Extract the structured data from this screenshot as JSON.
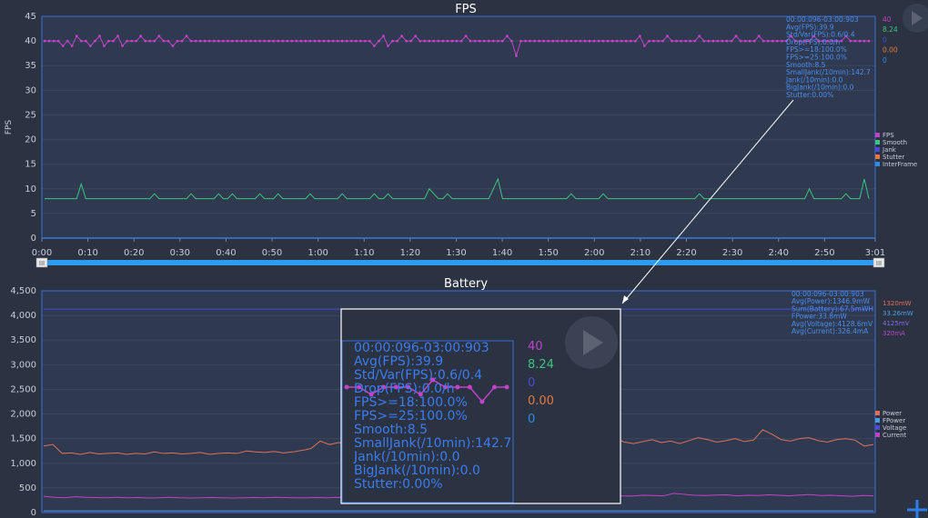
{
  "fps_chart": {
    "title": "FPS",
    "ylabel": "FPS",
    "chart_data": {
      "type": "line",
      "title": "FPS",
      "ylabel": "FPS",
      "ylim": [
        0,
        45
      ],
      "y_ticks": [
        "0",
        "5",
        "10",
        "15",
        "20",
        "25",
        "30",
        "35",
        "40",
        "45"
      ],
      "x_ticks": [
        "0:00",
        "0:10",
        "0:20",
        "0:30",
        "0:40",
        "0:50",
        "1:00",
        "1:10",
        "1:20",
        "1:30",
        "1:40",
        "1:50",
        "2:00",
        "2:10",
        "2:20",
        "2:30",
        "2:40",
        "2:50",
        "3:01"
      ],
      "xlim_seconds": [
        0,
        181
      ],
      "legend_position": "right",
      "series": [
        {
          "name": "FPS",
          "color": "#c242c8",
          "values": [
            40,
            40,
            40,
            40,
            39,
            40,
            39,
            41,
            40,
            40,
            39,
            40,
            41,
            39,
            40,
            40,
            41,
            39,
            40,
            40,
            40,
            41,
            40,
            40,
            40,
            41,
            40,
            40,
            39,
            40,
            40,
            41,
            40,
            40,
            40,
            40,
            40,
            40,
            40,
            40,
            40,
            40,
            40,
            40,
            40,
            40,
            40,
            40,
            40,
            40,
            40,
            40,
            40,
            40,
            40,
            40,
            40,
            40,
            40,
            40,
            40,
            40,
            40,
            40,
            40,
            40,
            40,
            40,
            40,
            40,
            40,
            40,
            39,
            40,
            41,
            39,
            40,
            40,
            41,
            40,
            40,
            41,
            40,
            40,
            40,
            40,
            40,
            40,
            40,
            40,
            40,
            40,
            41,
            40,
            40,
            40,
            40,
            40,
            40,
            40,
            40,
            41,
            40,
            37,
            40,
            40,
            40,
            40,
            40,
            40,
            40,
            40,
            40,
            40,
            40,
            40,
            40,
            40,
            40,
            40,
            40,
            40,
            40,
            40,
            40,
            40,
            40,
            40,
            40,
            40,
            41,
            39,
            40,
            40,
            40,
            40,
            41,
            40,
            40,
            40,
            40,
            40,
            40,
            41,
            40,
            40,
            40,
            40,
            40,
            40,
            40,
            41,
            40,
            40,
            40,
            40,
            41,
            40,
            40,
            40,
            40,
            40,
            40,
            41,
            40,
            40,
            40,
            40,
            41,
            40,
            40,
            40,
            40,
            40,
            40,
            41,
            40,
            40,
            40,
            40,
            40
          ]
        },
        {
          "name": "Smooth",
          "color": "#3dc47e",
          "values": [
            8,
            8,
            8,
            8,
            8,
            8,
            8,
            8,
            11,
            8,
            8,
            8,
            8,
            8,
            8,
            8,
            8,
            8,
            8,
            8,
            8,
            8,
            8,
            8,
            9,
            8,
            8,
            8,
            8,
            8,
            8,
            8,
            9,
            8,
            8,
            8,
            8,
            8,
            9,
            8,
            8,
            9,
            8,
            8,
            8,
            8,
            8,
            9,
            8,
            8,
            8,
            9,
            8,
            8,
            8,
            8,
            8,
            8,
            9,
            8,
            8,
            8,
            8,
            8,
            8,
            9,
            8,
            8,
            8,
            8,
            8,
            8,
            9,
            8,
            8,
            9,
            8,
            8,
            8,
            8,
            8,
            8,
            8,
            8,
            10,
            9,
            8,
            8,
            9,
            8,
            8,
            8,
            8,
            8,
            8,
            8,
            8,
            8,
            10,
            12,
            8,
            8,
            8,
            8,
            8,
            8,
            8,
            8,
            8,
            8,
            8,
            8,
            8,
            8,
            8,
            9,
            8,
            8,
            8,
            8,
            8,
            8,
            9,
            8,
            8,
            8,
            8,
            8,
            8,
            8,
            8,
            8,
            8,
            8,
            8,
            8,
            8,
            8,
            8,
            8,
            8,
            8,
            8,
            9,
            8,
            8,
            8,
            8,
            8,
            8,
            8,
            8,
            8,
            8,
            8,
            8,
            8,
            8,
            8,
            8,
            8,
            8,
            8,
            8,
            8,
            8,
            8,
            10,
            8,
            8,
            8,
            8,
            8,
            8,
            8,
            9,
            8,
            8,
            8,
            12,
            8
          ]
        },
        {
          "name": "Jank",
          "color": "#4040d0",
          "values": [
            0,
            0
          ]
        },
        {
          "name": "Stutter",
          "color": "#e8783a",
          "values": [
            0,
            0
          ]
        },
        {
          "name": "InterFrame",
          "color": "#2e8de8",
          "values": [
            0,
            0
          ]
        }
      ]
    },
    "legend_items": [
      {
        "name": "FPS",
        "color": "#c242c8"
      },
      {
        "name": "Smooth",
        "color": "#3dc47e"
      },
      {
        "name": "Jank",
        "color": "#4a4ad8"
      },
      {
        "name": "Stutter",
        "color": "#e8783a"
      },
      {
        "name": "InterFrame",
        "color": "#2e8de8"
      }
    ],
    "stats": [
      "00:00:096-03:00:903",
      "Avg(FPS):39.9",
      "Std/Var(FPS):0.6/0.4",
      "Drop(FPS):0.0/h",
      "FPS>=18:100.0%",
      "FPS>=25:100.0%",
      "Smooth:8.5",
      "SmallJank(/10min):142.7",
      "Jank(/10min):0.0",
      "BigJank(/10min):0.0",
      "Stutter:0.00%"
    ],
    "side_values": [
      {
        "text": "40",
        "color": "#c242c8"
      },
      {
        "text": "8.24",
        "color": "#3dc47e"
      },
      {
        "text": "0",
        "color": "#4a4ad8"
      },
      {
        "text": "0.00",
        "color": "#e8783a"
      },
      {
        "text": "0",
        "color": "#2e8de8"
      }
    ]
  },
  "battery_chart": {
    "title": "Battery",
    "chart_data": {
      "type": "line",
      "title": "Battery",
      "ylim": [
        0,
        4500
      ],
      "y_ticks": [
        "0",
        "500",
        "1,000",
        "1,500",
        "2,000",
        "2,500",
        "3,000",
        "3,500",
        "4,000",
        "4,500"
      ],
      "legend_position": "right",
      "series": [
        {
          "name": "Power",
          "color": "#e0705a",
          "values": [
            1350,
            1380,
            1200,
            1210,
            1180,
            1220,
            1190,
            1200,
            1210,
            1180,
            1200,
            1190,
            1230,
            1200,
            1210,
            1190,
            1200,
            1220,
            1180,
            1200,
            1210,
            1200,
            1250,
            1230,
            1220,
            1240,
            1210,
            1230,
            1260,
            1300,
            1450,
            1380,
            1420,
            1400,
            1350,
            1480,
            1420,
            1380,
            1400,
            1450,
            1420,
            1460,
            1380,
            1400,
            1470,
            1430,
            1390,
            1410,
            1450,
            1420,
            1400,
            1460,
            1380,
            1420,
            1440,
            1400,
            1430,
            1470,
            1410,
            1390,
            1420,
            1460,
            1500,
            1430,
            1400,
            1440,
            1480,
            1420,
            1450,
            1400,
            1460,
            1520,
            1480,
            1430,
            1460,
            1500,
            1440,
            1470,
            1680,
            1590,
            1480,
            1450,
            1500,
            1520,
            1460,
            1430,
            1480,
            1500,
            1470,
            1350,
            1380
          ]
        },
        {
          "name": "FPower",
          "color": "#4a9ee8",
          "values": [
            34,
            34
          ]
        },
        {
          "name": "Voltage",
          "color": "#4a4ad8",
          "values": [
            4128.6,
            4128.6
          ]
        },
        {
          "name": "Current",
          "color": "#c242c8",
          "values": [
            330,
            310,
            300,
            320,
            310,
            305,
            300,
            310,
            300,
            305,
            295,
            300,
            310,
            300,
            295,
            300,
            305,
            300,
            295,
            300,
            305,
            300,
            310,
            305,
            300,
            300,
            305,
            300,
            310,
            305,
            300,
            320,
            340,
            330,
            350,
            340,
            360,
            340,
            330,
            350,
            345,
            335,
            350,
            340,
            330,
            355,
            345,
            340,
            335,
            345,
            350,
            340,
            330,
            345,
            360,
            340,
            335,
            350,
            345,
            340,
            390,
            370,
            350,
            345,
            355,
            360,
            340,
            350,
            345,
            360,
            350,
            340,
            355,
            365,
            345,
            350,
            340,
            330,
            345,
            340
          ]
        }
      ]
    },
    "legend_items": [
      {
        "name": "Power",
        "color": "#e0705a"
      },
      {
        "name": "FPower",
        "color": "#4a9ee8"
      },
      {
        "name": "Voltage",
        "color": "#4a4ad8"
      },
      {
        "name": "Current",
        "color": "#c242c8"
      }
    ],
    "stats": [
      "00:00:096-03:00:903",
      "Avg(Power):1346.9mW",
      "Sum(Battery):67.5mWH",
      "FPower:33.8mW",
      "Avg(Voltage):4128.6mV",
      "Avg(Current):326.4mA"
    ],
    "side_values": [
      {
        "text": "1320mW",
        "color": "#e0705a"
      },
      {
        "text": "33.26mW",
        "color": "#4a9ee8"
      },
      {
        "text": "4125mV",
        "color": "#8a6ae8"
      },
      {
        "text": "320mA",
        "color": "#c242c8"
      }
    ]
  },
  "magnifier": {
    "stats": [
      "00:00:096-03:00:903",
      "Avg(FPS):39.9",
      "Std/Var(FPS):0.6/0.4",
      "Drop(FPS):0.0/h",
      "FPS>=18:100.0%",
      "FPS>=25:100.0%",
      "Smooth:8.5",
      "SmallJank(/10min):142.7",
      "Jank(/10min):0.0",
      "BigJank(/10min):0.0",
      "Stutter:0.00%"
    ],
    "side_values": [
      {
        "text": "40",
        "color": "#c242c8"
      },
      {
        "text": "8.24",
        "color": "#3dc47e"
      },
      {
        "text": "0",
        "color": "#4a4ad8"
      },
      {
        "text": "0.00",
        "color": "#e8783a"
      },
      {
        "text": "0",
        "color": "#2e8de8"
      }
    ],
    "zoom_fps_values": [
      40,
      40,
      39,
      40,
      40,
      40,
      39,
      41,
      40,
      40,
      40,
      38,
      40,
      40
    ]
  },
  "slider": {
    "left_handle_label": "III",
    "right_handle_label": "III"
  },
  "icons": {
    "play": "play-icon",
    "add": "plus-icon"
  }
}
